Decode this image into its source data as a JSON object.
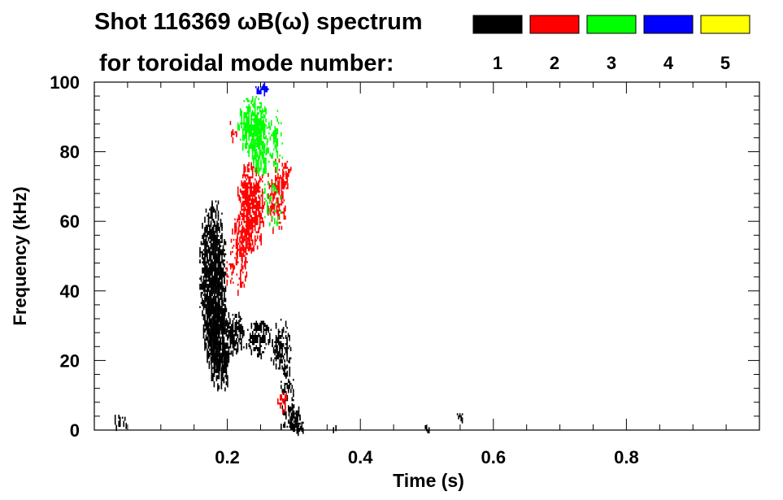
{
  "chart_data": {
    "type": "heatmap",
    "title_line1": "Shot 116369 ωB(ω) spectrum",
    "title_line2": "for toroidal mode number:",
    "xlabel": "Time (s)",
    "ylabel": "Frequency (kHz)",
    "xlim": [
      0.0,
      1.0
    ],
    "ylim": [
      0,
      100
    ],
    "x_ticks": [
      {
        "value": 0.2,
        "label": "0.2"
      },
      {
        "value": 0.4,
        "label": "0.4"
      },
      {
        "value": 0.6,
        "label": "0.6"
      },
      {
        "value": 0.8,
        "label": "0.8"
      }
    ],
    "y_ticks": [
      {
        "value": 0,
        "label": "0"
      },
      {
        "value": 20,
        "label": "20"
      },
      {
        "value": 40,
        "label": "40"
      },
      {
        "value": 60,
        "label": "60"
      },
      {
        "value": 80,
        "label": "80"
      },
      {
        "value": 100,
        "label": "100"
      }
    ],
    "legend": [
      {
        "mode": "1",
        "color": "#000000"
      },
      {
        "mode": "2",
        "color": "#ff0000"
      },
      {
        "mode": "3",
        "color": "#00ff00"
      },
      {
        "mode": "4",
        "color": "#0000ff"
      },
      {
        "mode": "5",
        "color": "#ffff00"
      }
    ],
    "regions": [
      {
        "mode": 1,
        "t": [
          0.158,
          0.198
        ],
        "f": [
          20,
          66
        ],
        "density": 0.85
      },
      {
        "mode": 1,
        "t": [
          0.17,
          0.205
        ],
        "f": [
          12,
          38
        ],
        "density": 0.6
      },
      {
        "mode": 1,
        "t": [
          0.2,
          0.225
        ],
        "f": [
          22,
          34
        ],
        "density": 0.55
      },
      {
        "mode": 1,
        "t": [
          0.228,
          0.265
        ],
        "f": [
          22,
          32
        ],
        "density": 0.5
      },
      {
        "mode": 1,
        "t": [
          0.265,
          0.295
        ],
        "f": [
          16,
          32
        ],
        "density": 0.4
      },
      {
        "mode": 1,
        "t": [
          0.28,
          0.3
        ],
        "f": [
          3,
          20
        ],
        "density": 0.35
      },
      {
        "mode": 1,
        "t": [
          0.29,
          0.31
        ],
        "f": [
          1,
          8
        ],
        "density": 0.85
      },
      {
        "mode": 1,
        "t": [
          0.28,
          0.32
        ],
        "f": [
          0,
          3
        ],
        "density": 0.5
      },
      {
        "mode": 1,
        "t": [
          0.175,
          0.2
        ],
        "f": [
          18,
          24
        ],
        "density": 0.7
      },
      {
        "mode": 1,
        "t": [
          0.355,
          0.365
        ],
        "f": [
          0,
          2
        ],
        "density": 0.6
      },
      {
        "mode": 1,
        "t": [
          0.495,
          0.505
        ],
        "f": [
          0,
          2
        ],
        "density": 0.5
      },
      {
        "mode": 1,
        "t": [
          0.025,
          0.05
        ],
        "f": [
          0,
          5
        ],
        "density": 0.2
      },
      {
        "mode": 1,
        "t": [
          0.545,
          0.555
        ],
        "f": [
          3,
          6
        ],
        "density": 0.3
      },
      {
        "mode": 2,
        "t": [
          0.215,
          0.255
        ],
        "f": [
          52,
          77
        ],
        "density": 0.65
      },
      {
        "mode": 2,
        "t": [
          0.205,
          0.235
        ],
        "f": [
          48,
          62
        ],
        "density": 0.5
      },
      {
        "mode": 2,
        "t": [
          0.255,
          0.29
        ],
        "f": [
          58,
          78
        ],
        "density": 0.3
      },
      {
        "mode": 2,
        "t": [
          0.195,
          0.23
        ],
        "f": [
          40,
          52
        ],
        "density": 0.2
      },
      {
        "mode": 2,
        "t": [
          0.275,
          0.29
        ],
        "f": [
          6,
          12
        ],
        "density": 0.5
      },
      {
        "mode": 2,
        "t": [
          0.2,
          0.215
        ],
        "f": [
          84,
          90
        ],
        "density": 0.3
      },
      {
        "mode": 2,
        "t": [
          0.28,
          0.295
        ],
        "f": [
          70,
          78
        ],
        "density": 0.4
      },
      {
        "mode": 3,
        "t": [
          0.215,
          0.26
        ],
        "f": [
          80,
          96
        ],
        "density": 0.7
      },
      {
        "mode": 3,
        "t": [
          0.235,
          0.262
        ],
        "f": [
          74,
          90
        ],
        "density": 0.65
      },
      {
        "mode": 3,
        "t": [
          0.258,
          0.282
        ],
        "f": [
          74,
          92
        ],
        "density": 0.3
      },
      {
        "mode": 3,
        "t": [
          0.25,
          0.28
        ],
        "f": [
          58,
          72
        ],
        "density": 0.2
      },
      {
        "mode": 4,
        "t": [
          0.242,
          0.262
        ],
        "f": [
          97,
          100
        ],
        "density": 0.6
      }
    ]
  }
}
